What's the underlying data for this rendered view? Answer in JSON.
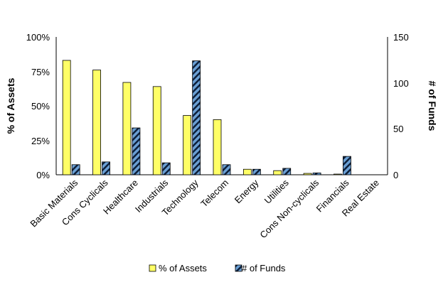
{
  "chart_data": {
    "type": "bar",
    "categories": [
      "Basic Materials",
      "Cons Cyclicals",
      "Healthcare",
      "Industrials",
      "Technology",
      "Telecom",
      "Energy",
      "Utilities",
      "Cons Non-cyclicals",
      "Financials",
      "Real Estate"
    ],
    "series": [
      {
        "name": "% of Assets",
        "axis": "left",
        "color": "#ffff66",
        "values": [
          83,
          76,
          67,
          64,
          43,
          40,
          4,
          3,
          1,
          0.5,
          0
        ]
      },
      {
        "name": "# of Funds",
        "axis": "right",
        "color": "#6699cc",
        "pattern": "diagonal-hatch",
        "values": [
          11,
          14,
          51,
          13,
          124,
          11,
          6,
          7,
          2,
          20,
          0
        ]
      }
    ],
    "ylabel": "% of Assets",
    "y2label": "# of Funds",
    "ylim": [
      0,
      100
    ],
    "y2lim": [
      0,
      150
    ],
    "yticks": [
      "0%",
      "25%",
      "50%",
      "75%",
      "100%"
    ],
    "y2ticks": [
      "0",
      "50",
      "100",
      "150"
    ],
    "grid": false,
    "legend_position": "bottom"
  }
}
